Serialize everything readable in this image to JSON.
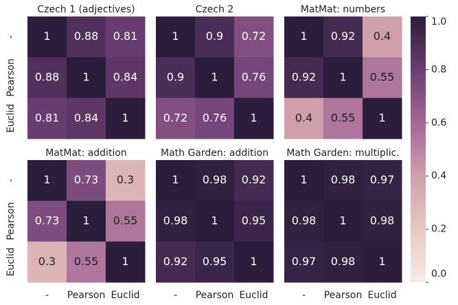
{
  "chart_data": [
    {
      "type": "heatmap",
      "title": "Czech 1 (adjectives)",
      "y_categories": [
        "-",
        "Pearson",
        "Euclid"
      ],
      "values": [
        [
          1,
          0.88,
          0.81
        ],
        [
          0.88,
          1,
          0.84
        ],
        [
          0.81,
          0.84,
          1
        ]
      ]
    },
    {
      "type": "heatmap",
      "title": "Czech 2",
      "values": [
        [
          1,
          0.9,
          0.72
        ],
        [
          0.9,
          1,
          0.76
        ],
        [
          0.72,
          0.76,
          1
        ]
      ]
    },
    {
      "type": "heatmap",
      "title": "MatMat: numbers",
      "values": [
        [
          1,
          0.92,
          0.4
        ],
        [
          0.92,
          1,
          0.55
        ],
        [
          0.4,
          0.55,
          1
        ]
      ]
    },
    {
      "type": "heatmap",
      "title": "MatMat: addition",
      "y_categories": [
        "-",
        "Pearson",
        "Euclid"
      ],
      "x_categories": [
        "-",
        "Pearson",
        "Euclid"
      ],
      "values": [
        [
          1,
          0.73,
          0.3
        ],
        [
          0.73,
          1,
          0.55
        ],
        [
          0.3,
          0.55,
          1
        ]
      ]
    },
    {
      "type": "heatmap",
      "title": "Math Garden: addition",
      "x_categories": [
        "-",
        "Pearson",
        "Euclid"
      ],
      "values": [
        [
          1,
          0.98,
          0.92
        ],
        [
          0.98,
          1,
          0.95
        ],
        [
          0.92,
          0.95,
          1
        ]
      ]
    },
    {
      "type": "heatmap",
      "title": "Math Garden: multiplic.",
      "x_categories": [
        "-",
        "Pearson",
        "Euclid"
      ],
      "values": [
        [
          1,
          0.98,
          0.97
        ],
        [
          0.98,
          1,
          0.98
        ],
        [
          0.97,
          0.98,
          1
        ]
      ]
    }
  ],
  "colorbar": {
    "lim": [
      0,
      1
    ],
    "ticks": [
      {
        "value": 0,
        "label": "0.0"
      },
      {
        "value": 0.2,
        "label": "0.2"
      },
      {
        "value": 0.4,
        "label": "0.4"
      },
      {
        "value": 0.6,
        "label": "0.6"
      },
      {
        "value": 0.8,
        "label": "0.8"
      },
      {
        "value": 1,
        "label": "1.0"
      }
    ],
    "colormap": [
      "#f5ece8",
      "#e6c8c2",
      "#cf9fab",
      "#a36896",
      "#6a3e72",
      "#2c1d3c"
    ]
  }
}
